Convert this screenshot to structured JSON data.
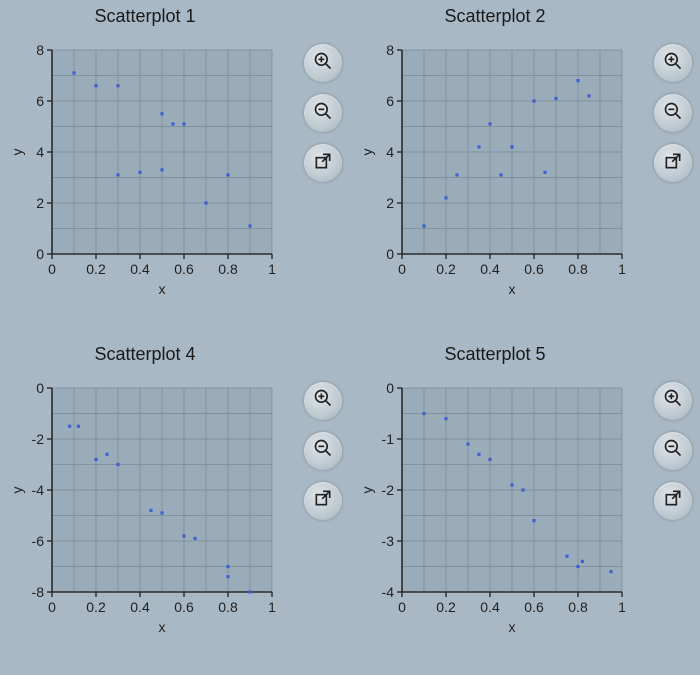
{
  "background_color": "#a8b8c4",
  "panels": [
    {
      "title": "Scatterplot 1",
      "type": "scatter",
      "xlabel": "x",
      "ylabel": "y",
      "xlim": [
        0,
        1
      ],
      "ylim": [
        0,
        8
      ],
      "xticks": [
        0,
        0.2,
        0.4,
        0.6,
        0.8,
        1
      ],
      "yticks": [
        0,
        2,
        4,
        6,
        8
      ],
      "grid_step_x": 0.1,
      "grid_step_y": 1,
      "points": [
        {
          "x": 0.1,
          "y": 7.1
        },
        {
          "x": 0.2,
          "y": 6.6
        },
        {
          "x": 0.3,
          "y": 6.6
        },
        {
          "x": 0.3,
          "y": 3.1
        },
        {
          "x": 0.4,
          "y": 3.2
        },
        {
          "x": 0.5,
          "y": 5.5
        },
        {
          "x": 0.5,
          "y": 3.3
        },
        {
          "x": 0.55,
          "y": 5.1
        },
        {
          "x": 0.6,
          "y": 5.1
        },
        {
          "x": 0.7,
          "y": 2.0
        },
        {
          "x": 0.8,
          "y": 3.1
        },
        {
          "x": 0.9,
          "y": 1.1
        }
      ],
      "marker_color": "#4060d0",
      "marker_size": 3.2,
      "axis_color": "#2a2a2a",
      "grid_color": "#7a8894",
      "plot_bg": "#9aacba",
      "tick_fontsize": 14,
      "label_fontsize": 14,
      "title_fontsize": 18
    },
    {
      "title": "Scatterplot 2",
      "type": "scatter",
      "xlabel": "x",
      "ylabel": "y",
      "xlim": [
        0,
        1
      ],
      "ylim": [
        0,
        8
      ],
      "xticks": [
        0,
        0.2,
        0.4,
        0.6,
        0.8,
        1
      ],
      "yticks": [
        0,
        2,
        4,
        6,
        8
      ],
      "grid_step_x": 0.1,
      "grid_step_y": 1,
      "points": [
        {
          "x": 0.1,
          "y": 1.1
        },
        {
          "x": 0.2,
          "y": 2.2
        },
        {
          "x": 0.25,
          "y": 3.1
        },
        {
          "x": 0.35,
          "y": 4.2
        },
        {
          "x": 0.4,
          "y": 5.1
        },
        {
          "x": 0.45,
          "y": 3.1
        },
        {
          "x": 0.5,
          "y": 4.2
        },
        {
          "x": 0.6,
          "y": 6.0
        },
        {
          "x": 0.65,
          "y": 3.2
        },
        {
          "x": 0.7,
          "y": 6.1
        },
        {
          "x": 0.8,
          "y": 6.8
        },
        {
          "x": 0.85,
          "y": 6.2
        }
      ],
      "marker_color": "#4060d0",
      "marker_size": 3.2,
      "axis_color": "#2a2a2a",
      "grid_color": "#7a8894",
      "plot_bg": "#9aacba",
      "tick_fontsize": 14,
      "label_fontsize": 14,
      "title_fontsize": 18
    },
    {
      "title": "Scatterplot 4",
      "type": "scatter",
      "xlabel": "x",
      "ylabel": "y",
      "xlim": [
        0,
        1
      ],
      "ylim": [
        -8,
        0
      ],
      "xticks": [
        0,
        0.2,
        0.4,
        0.6,
        0.8,
        1
      ],
      "yticks": [
        -8,
        -6,
        -4,
        -2,
        0
      ],
      "ytick_labels": [
        "-8",
        "-6",
        "-4",
        "-2",
        "0"
      ],
      "grid_step_x": 0.1,
      "grid_step_y": 1,
      "points": [
        {
          "x": 0.08,
          "y": -1.5
        },
        {
          "x": 0.12,
          "y": -1.5
        },
        {
          "x": 0.2,
          "y": -2.8
        },
        {
          "x": 0.25,
          "y": -2.6
        },
        {
          "x": 0.3,
          "y": -3.0
        },
        {
          "x": 0.45,
          "y": -4.8
        },
        {
          "x": 0.5,
          "y": -4.9
        },
        {
          "x": 0.6,
          "y": -5.8
        },
        {
          "x": 0.65,
          "y": -5.9
        },
        {
          "x": 0.8,
          "y": -7.0
        },
        {
          "x": 0.8,
          "y": -7.4
        },
        {
          "x": 0.9,
          "y": -8.0
        }
      ],
      "marker_color": "#4060d0",
      "marker_size": 3.2,
      "axis_color": "#2a2a2a",
      "grid_color": "#7a8894",
      "plot_bg": "#9aacba",
      "tick_fontsize": 14,
      "label_fontsize": 14,
      "title_fontsize": 18
    },
    {
      "title": "Scatterplot 5",
      "type": "scatter",
      "xlabel": "x",
      "ylabel": "y",
      "xlim": [
        0,
        1
      ],
      "ylim": [
        -4,
        0
      ],
      "xticks": [
        0,
        0.2,
        0.4,
        0.6,
        0.8,
        1
      ],
      "yticks": [
        -4,
        -3,
        -2,
        -1,
        0
      ],
      "ytick_labels": [
        "-4",
        "-3",
        "-2",
        "-1",
        "0"
      ],
      "grid_step_x": 0.1,
      "grid_step_y": 0.5,
      "points": [
        {
          "x": 0.1,
          "y": -0.5
        },
        {
          "x": 0.2,
          "y": -0.6
        },
        {
          "x": 0.3,
          "y": -1.1
        },
        {
          "x": 0.35,
          "y": -1.3
        },
        {
          "x": 0.4,
          "y": -1.4
        },
        {
          "x": 0.5,
          "y": -1.9
        },
        {
          "x": 0.55,
          "y": -2.0
        },
        {
          "x": 0.6,
          "y": -2.6
        },
        {
          "x": 0.75,
          "y": -3.3
        },
        {
          "x": 0.8,
          "y": -3.5
        },
        {
          "x": 0.82,
          "y": -3.4
        },
        {
          "x": 0.95,
          "y": -3.6
        }
      ],
      "marker_color": "#4060d0",
      "marker_size": 3.2,
      "axis_color": "#2a2a2a",
      "grid_color": "#7a8894",
      "plot_bg": "#9aacba",
      "tick_fontsize": 14,
      "label_fontsize": 14,
      "title_fontsize": 18
    }
  ],
  "buttons": {
    "zoom_in": "zoom-in-icon",
    "zoom_out": "zoom-out-icon",
    "popout": "popout-icon"
  }
}
